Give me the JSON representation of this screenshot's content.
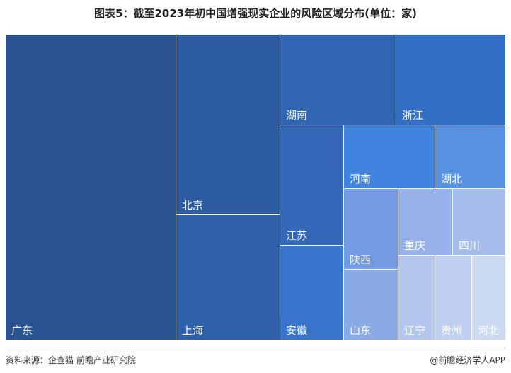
{
  "chart_data": {
    "type": "treemap",
    "title": "图表5：截至2023年初中国增强现实企业的风险区域分布(单位：家)",
    "items": [
      {
        "name": "广东",
        "value": 78,
        "color": "#2a5391"
      },
      {
        "name": "北京",
        "value": 32,
        "color": "#2c5ba0"
      },
      {
        "name": "上海",
        "value": 26,
        "color": "#2f60ac"
      },
      {
        "name": "湖南",
        "value": 14,
        "color": "#3065b3"
      },
      {
        "name": "浙江",
        "value": 14,
        "color": "#336fc4"
      },
      {
        "name": "江苏",
        "value": 10,
        "color": "#3368b8"
      },
      {
        "name": "安徽",
        "value": 8,
        "color": "#3874cb"
      },
      {
        "name": "河南",
        "value": 8,
        "color": "#3f83df"
      },
      {
        "name": "湖北",
        "value": 6,
        "color": "#5891e2"
      },
      {
        "name": "陕西",
        "value": 5,
        "color": "#729ae3"
      },
      {
        "name": "山东",
        "value": 4,
        "color": "#8aaae6"
      },
      {
        "name": "重庆",
        "value": 4,
        "color": "#95b1e8"
      },
      {
        "name": "四川",
        "value": 4,
        "color": "#a6bdeb"
      },
      {
        "name": "辽宁",
        "value": 2,
        "color": "#b3c7ee"
      },
      {
        "name": "贵州",
        "value": 2,
        "color": "#bfd0f0"
      },
      {
        "name": "河北",
        "value": 2,
        "color": "#ccd9f3"
      }
    ]
  },
  "footer": {
    "source": "资料来源：企查猫 前瞻产业研究院",
    "credit": "@前瞻经济学人APP"
  }
}
